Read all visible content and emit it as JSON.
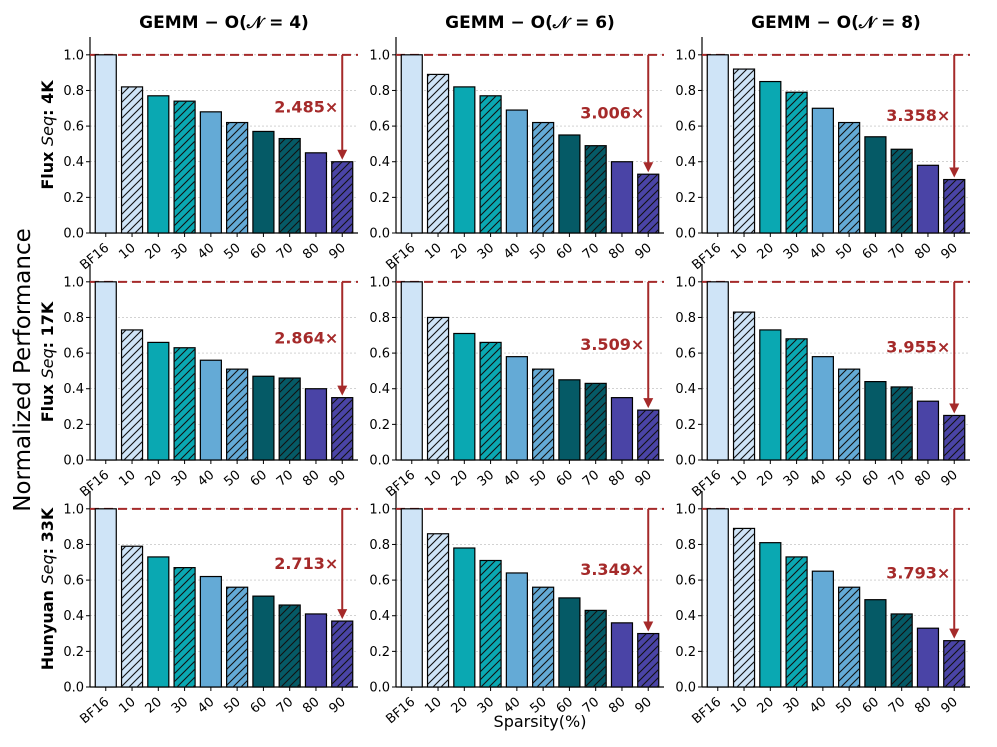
{
  "figure": {
    "ylabel": "Normalized Performance",
    "xlabel": "Sparsity(%)"
  },
  "chart_data": {
    "type": "bar",
    "categories": [
      "BF16",
      "10",
      "20",
      "30",
      "40",
      "50",
      "60",
      "70",
      "80",
      "90"
    ],
    "ylim": [
      0,
      1.1
    ],
    "yticks": [
      "0.0",
      "0.2",
      "0.4",
      "0.6",
      "0.8",
      "1.0"
    ],
    "grid": true,
    "baseline": 1.0,
    "colors": [
      "#cfe4f7",
      "#cfe4f7",
      "#0aa8b2",
      "#0aa8b2",
      "#64aad6",
      "#64aad6",
      "#055a66",
      "#055a66",
      "#4a44a6",
      "#4a44a6"
    ],
    "hatched": [
      false,
      true,
      false,
      true,
      false,
      true,
      false,
      true,
      false,
      true
    ],
    "arrow_color": "#a52a2a",
    "columns": [
      {
        "title": "GEMM − O(𝒩 = 4)"
      },
      {
        "title": "GEMM − O(𝒩 = 6)"
      },
      {
        "title": "GEMM − O(𝒩 = 8)"
      }
    ],
    "rows": [
      {
        "model": "Flux",
        "seq_word": "Seq",
        "seq_value": "4K"
      },
      {
        "model": "Flux",
        "seq_word": "Seq",
        "seq_value": "17K"
      },
      {
        "model": "Hunyuan",
        "seq_word": "Seq",
        "seq_value": "33K"
      }
    ],
    "panels": [
      {
        "row": 0,
        "col": 0,
        "values": [
          1.0,
          0.82,
          0.77,
          0.74,
          0.68,
          0.62,
          0.57,
          0.53,
          0.45,
          0.4
        ],
        "speedup": "2.485×"
      },
      {
        "row": 0,
        "col": 1,
        "values": [
          1.0,
          0.89,
          0.82,
          0.77,
          0.69,
          0.62,
          0.55,
          0.49,
          0.4,
          0.33
        ],
        "speedup": "3.006×"
      },
      {
        "row": 0,
        "col": 2,
        "values": [
          1.0,
          0.92,
          0.85,
          0.79,
          0.7,
          0.62,
          0.54,
          0.47,
          0.38,
          0.3
        ],
        "speedup": "3.358×"
      },
      {
        "row": 1,
        "col": 0,
        "values": [
          1.0,
          0.73,
          0.66,
          0.63,
          0.56,
          0.51,
          0.47,
          0.46,
          0.4,
          0.35
        ],
        "speedup": "2.864×"
      },
      {
        "row": 1,
        "col": 1,
        "values": [
          1.0,
          0.8,
          0.71,
          0.66,
          0.58,
          0.51,
          0.45,
          0.43,
          0.35,
          0.28
        ],
        "speedup": "3.509×"
      },
      {
        "row": 1,
        "col": 2,
        "values": [
          1.0,
          0.83,
          0.73,
          0.68,
          0.58,
          0.51,
          0.44,
          0.41,
          0.33,
          0.25
        ],
        "speedup": "3.955×"
      },
      {
        "row": 2,
        "col": 0,
        "values": [
          1.0,
          0.79,
          0.73,
          0.67,
          0.62,
          0.56,
          0.51,
          0.46,
          0.41,
          0.37
        ],
        "speedup": "2.713×"
      },
      {
        "row": 2,
        "col": 1,
        "values": [
          1.0,
          0.86,
          0.78,
          0.71,
          0.64,
          0.56,
          0.5,
          0.43,
          0.36,
          0.3
        ],
        "speedup": "3.349×"
      },
      {
        "row": 2,
        "col": 2,
        "values": [
          1.0,
          0.89,
          0.81,
          0.73,
          0.65,
          0.56,
          0.49,
          0.41,
          0.33,
          0.26
        ],
        "speedup": "3.793×"
      }
    ]
  }
}
